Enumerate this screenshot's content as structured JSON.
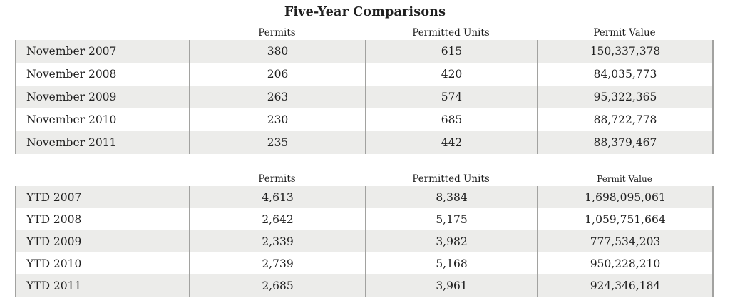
{
  "title": "Five-Year Comparisons",
  "colors": {
    "row_shade": "#ececea",
    "divider": "#a2a2a0",
    "text": "#1f1f1f"
  },
  "tables": [
    {
      "name": "november-comparison",
      "columns": [
        "Permits",
        "Permitted Units",
        "Permit Value"
      ],
      "rows": [
        {
          "label": "November 2007",
          "permits": "380",
          "units": "615",
          "value": "150,337,378"
        },
        {
          "label": "November 2008",
          "permits": "206",
          "units": "420",
          "value": "84,035,773"
        },
        {
          "label": "November 2009",
          "permits": "263",
          "units": "574",
          "value": "95,322,365"
        },
        {
          "label": "November 2010",
          "permits": "230",
          "units": "685",
          "value": "88,722,778"
        },
        {
          "label": "November 2011",
          "permits": "235",
          "units": "442",
          "value": "88,379,467"
        }
      ]
    },
    {
      "name": "ytd-comparison",
      "columns": [
        "Permits",
        "Permitted Units",
        "Permit Value"
      ],
      "rows": [
        {
          "label": "YTD 2007",
          "permits": "4,613",
          "units": "8,384",
          "value": "1,698,095,061"
        },
        {
          "label": "YTD 2008",
          "permits": "2,642",
          "units": "5,175",
          "value": "1,059,751,664"
        },
        {
          "label": "YTD 2009",
          "permits": "2,339",
          "units": "3,982",
          "value": "777,534,203"
        },
        {
          "label": "YTD 2010",
          "permits": "2,739",
          "units": "5,168",
          "value": "950,228,210"
        },
        {
          "label": "YTD 2011",
          "permits": "2,685",
          "units": "3,961",
          "value": "924,346,184"
        }
      ]
    }
  ]
}
